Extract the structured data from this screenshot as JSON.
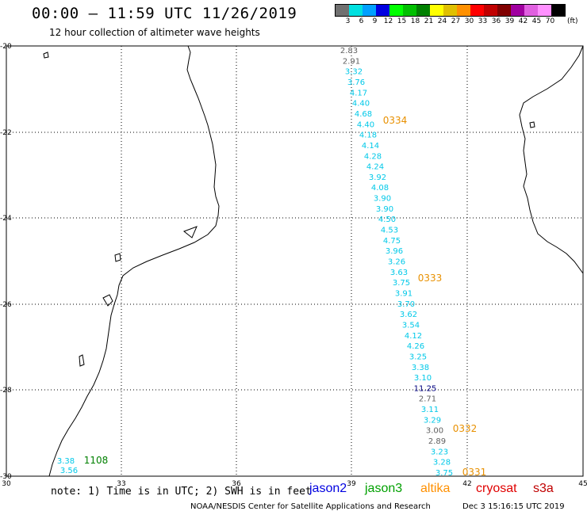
{
  "header": {
    "title": "00:00 – 11:59 UTC 11/26/2019",
    "subtitle": "12 hour collection of altimeter wave heights"
  },
  "colorbar": {
    "colors": [
      "#707070",
      "#00e0e0",
      "#00a0ff",
      "#0000e0",
      "#00ff00",
      "#00c000",
      "#008000",
      "#ffff00",
      "#e0c000",
      "#ff9000",
      "#ff0000",
      "#c00000",
      "#800000",
      "#a000a0",
      "#e060e0",
      "#ff90ff",
      "#000000"
    ],
    "labels": [
      "3",
      "6",
      "9",
      "12",
      "15",
      "18",
      "21",
      "24",
      "27",
      "30",
      "33",
      "36",
      "39",
      "42",
      "45",
      "70"
    ],
    "unit": "(ft)"
  },
  "axes": {
    "lat_labels": [
      "-20",
      "-22",
      "-24",
      "-26",
      "-28",
      "-30"
    ],
    "lon_labels": [
      "30",
      "33",
      "36",
      "39",
      "42",
      "45"
    ]
  },
  "track_colors": {
    "gray": "#606060",
    "cyan": "#00c8e8",
    "navy": "#000080",
    "orange": "#e89000",
    "green": "#008000"
  },
  "track_values": [
    {
      "v": "2.83",
      "c": "gray"
    },
    {
      "v": "2.91",
      "c": "gray"
    },
    {
      "v": "3.32",
      "c": "cyan"
    },
    {
      "v": "3.76",
      "c": "cyan"
    },
    {
      "v": "4.17",
      "c": "cyan"
    },
    {
      "v": "4.40",
      "c": "cyan"
    },
    {
      "v": "4.68",
      "c": "cyan"
    },
    {
      "v": "4.40",
      "c": "cyan"
    },
    {
      "v": "4.18",
      "c": "cyan"
    },
    {
      "v": "4.14",
      "c": "cyan"
    },
    {
      "v": "4.28",
      "c": "cyan"
    },
    {
      "v": "4.24",
      "c": "cyan"
    },
    {
      "v": "3.92",
      "c": "cyan"
    },
    {
      "v": "4.08",
      "c": "cyan"
    },
    {
      "v": "3.90",
      "c": "cyan"
    },
    {
      "v": "3.90",
      "c": "cyan"
    },
    {
      "v": "4.50",
      "c": "cyan"
    },
    {
      "v": "4.53",
      "c": "cyan"
    },
    {
      "v": "4.75",
      "c": "cyan"
    },
    {
      "v": "3.96",
      "c": "cyan"
    },
    {
      "v": "3.26",
      "c": "cyan"
    },
    {
      "v": "3.63",
      "c": "cyan"
    },
    {
      "v": "3.75",
      "c": "cyan"
    },
    {
      "v": "3.91",
      "c": "cyan"
    },
    {
      "v": "3.70",
      "c": "cyan"
    },
    {
      "v": "3.62",
      "c": "cyan"
    },
    {
      "v": "3.54",
      "c": "cyan"
    },
    {
      "v": "4.12",
      "c": "cyan"
    },
    {
      "v": "4.26",
      "c": "cyan"
    },
    {
      "v": "3.25",
      "c": "cyan"
    },
    {
      "v": "3.38",
      "c": "cyan"
    },
    {
      "v": "3.10",
      "c": "cyan"
    },
    {
      "v": "11.25",
      "c": "navy"
    },
    {
      "v": "2.71",
      "c": "gray"
    },
    {
      "v": "3.11",
      "c": "cyan"
    },
    {
      "v": "3.29",
      "c": "cyan"
    },
    {
      "v": "3.00",
      "c": "gray"
    },
    {
      "v": "2.89",
      "c": "gray"
    },
    {
      "v": "3.23",
      "c": "cyan"
    },
    {
      "v": "3.28",
      "c": "cyan"
    },
    {
      "v": "3.75",
      "c": "cyan"
    }
  ],
  "time_labels": [
    {
      "v": "0334",
      "c": "orange"
    },
    {
      "v": "0333",
      "c": "orange"
    },
    {
      "v": "0332",
      "c": "orange"
    },
    {
      "v": "0331",
      "c": "orange"
    },
    {
      "v": "1108",
      "c": "green"
    }
  ],
  "corner_values": [
    {
      "v": "3.38",
      "c": "cyan"
    },
    {
      "v": "3.56",
      "c": "cyan"
    }
  ],
  "footer": {
    "note": "note: 1) Time is in UTC; 2) SWH is in feet",
    "satellites": [
      {
        "name": "jason2",
        "color": "#0000e0"
      },
      {
        "name": "jason3",
        "color": "#00a000"
      },
      {
        "name": "altika",
        "color": "#ff9000"
      },
      {
        "name": "cryosat",
        "color": "#e00000"
      },
      {
        "name": "s3a",
        "color": "#c00000"
      }
    ],
    "credit": "NOAA/NESDIS Center for Satellite Applications and Research",
    "generated": "Dec  3 15:16:15 UTC 2019"
  }
}
